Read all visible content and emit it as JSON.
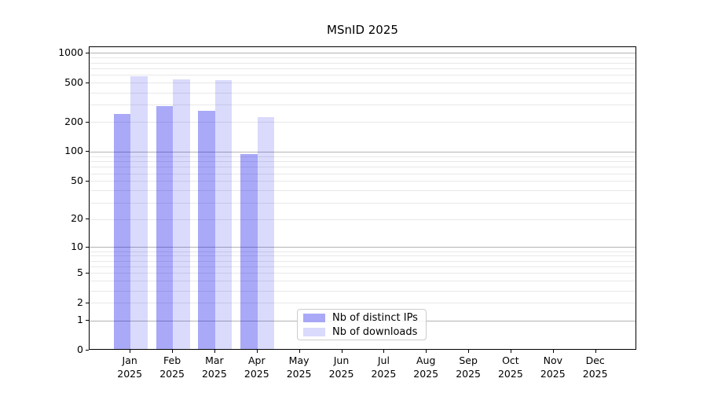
{
  "title": "MSnID 2025",
  "chart_data": {
    "type": "bar",
    "title": "MSnID 2025",
    "categories": [
      "Jan 2025",
      "Feb 2025",
      "Mar 2025",
      "Apr 2025",
      "May 2025",
      "Jun 2025",
      "Jul 2025",
      "Aug 2025",
      "Sep 2025",
      "Oct 2025",
      "Nov 2025",
      "Dec 2025"
    ],
    "series": [
      {
        "name": "Nb of distinct IPs",
        "color": "rgba(10,10,235,0.35)",
        "values": [
          236,
          282,
          252,
          92,
          null,
          null,
          null,
          null,
          null,
          null,
          null,
          null
        ]
      },
      {
        "name": "Nb of downloads",
        "color": "rgba(10,10,235,0.15)",
        "values": [
          563,
          529,
          520,
          218,
          null,
          null,
          null,
          null,
          null,
          null,
          null,
          null
        ]
      }
    ],
    "xlabel": "",
    "ylabel": "",
    "yscale": "log1p",
    "yticks": [
      0,
      1,
      2,
      5,
      10,
      20,
      50,
      100,
      200,
      500,
      1000
    ],
    "ylim": [
      0,
      1157
    ],
    "grid": "horizontal, minor light gray, major (1,10,100,1000) darker gray",
    "legend_position": "bottom-center-inside"
  },
  "legend": {
    "item1": "Nb of distinct IPs",
    "item2": "Nb of downloads"
  }
}
